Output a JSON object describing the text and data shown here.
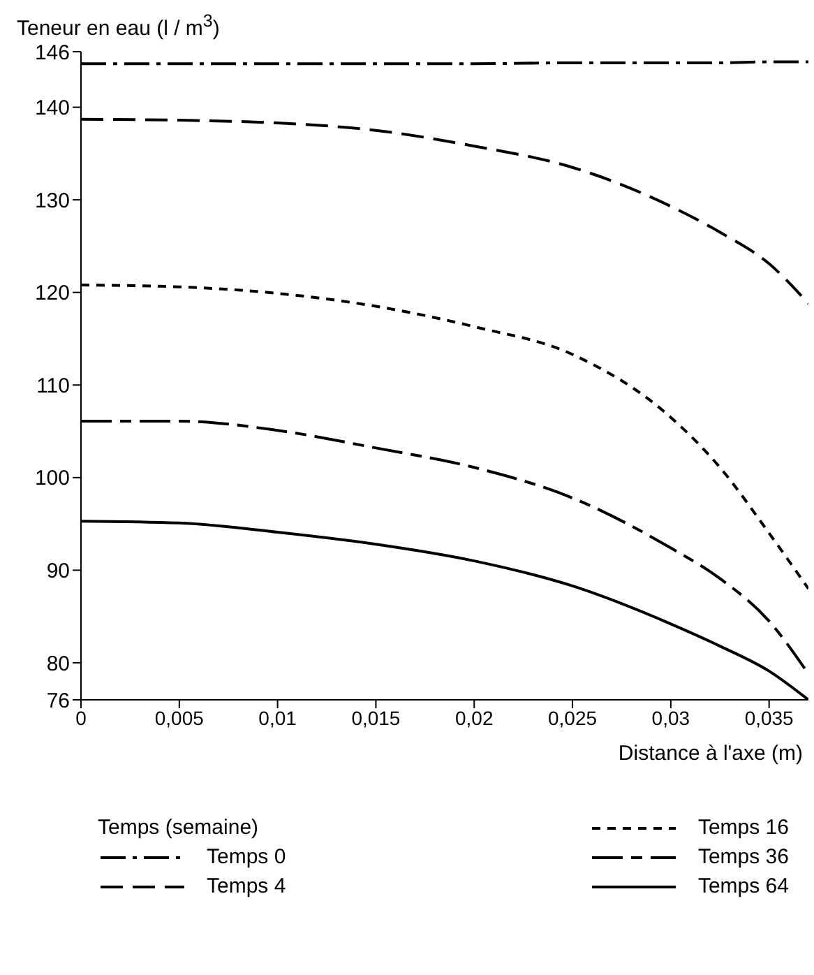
{
  "chart_data": {
    "type": "line",
    "ylabel": "Teneur en eau (l / m$^{3}$)",
    "xlabel": "Distance à l'axe (m)",
    "legend_title": "Temps (semaine)",
    "legend": "bottom",
    "marker": "none",
    "xlim": [
      0,
      0.037
    ],
    "xticks": [
      0,
      {
        "value": 0.005,
        "label": "0,005"
      },
      {
        "value": 0.01,
        "label": "0,01"
      },
      {
        "value": 0.015,
        "label": "0,015"
      },
      {
        "value": 0.02,
        "label": "0,02"
      },
      {
        "value": 0.025,
        "label": "0,025"
      },
      {
        "value": 0.03,
        "label": "0,03"
      },
      {
        "value": 0.035,
        "label": "0,035"
      }
    ],
    "ylim": [
      76,
      146
    ],
    "yticks": [
      76,
      80,
      90,
      100,
      110,
      120,
      130,
      140,
      146
    ],
    "x": [
      0,
      0.005,
      0.01,
      0.015,
      0.02,
      0.025,
      0.03,
      0.0325,
      0.035,
      0.037
    ],
    "series": [
      {
        "name": "Temps 0",
        "color": "#000000",
        "line_style": "dashdot",
        "values": [
          144.7,
          144.7,
          144.7,
          144.7,
          144.7,
          144.8,
          144.8,
          144.8,
          144.9,
          144.9
        ]
      },
      {
        "name": "Temps 4",
        "color": "#000000",
        "line_style": "dashed",
        "values": [
          138.7,
          138.6,
          138.3,
          137.5,
          135.8,
          133.5,
          129.3,
          126.5,
          123.1,
          118.8
        ]
      },
      {
        "name": "Temps 16",
        "color": "#000000",
        "line_style": "dotted",
        "values": [
          120.8,
          120.6,
          119.9,
          118.5,
          116.3,
          113.3,
          106.5,
          101.1,
          94.0,
          88.0
        ]
      },
      {
        "name": "Temps 36",
        "color": "#000000",
        "line_style": "longshort",
        "values": [
          106.1,
          106.1,
          105.1,
          103.2,
          101.1,
          97.8,
          92.4,
          89.1,
          84.5,
          78.8
        ]
      },
      {
        "name": "Temps 64",
        "color": "#000000",
        "line_style": "solid",
        "values": [
          95.3,
          95.1,
          94.1,
          92.8,
          91.0,
          88.3,
          84.2,
          81.8,
          79.1,
          76
        ]
      }
    ]
  }
}
